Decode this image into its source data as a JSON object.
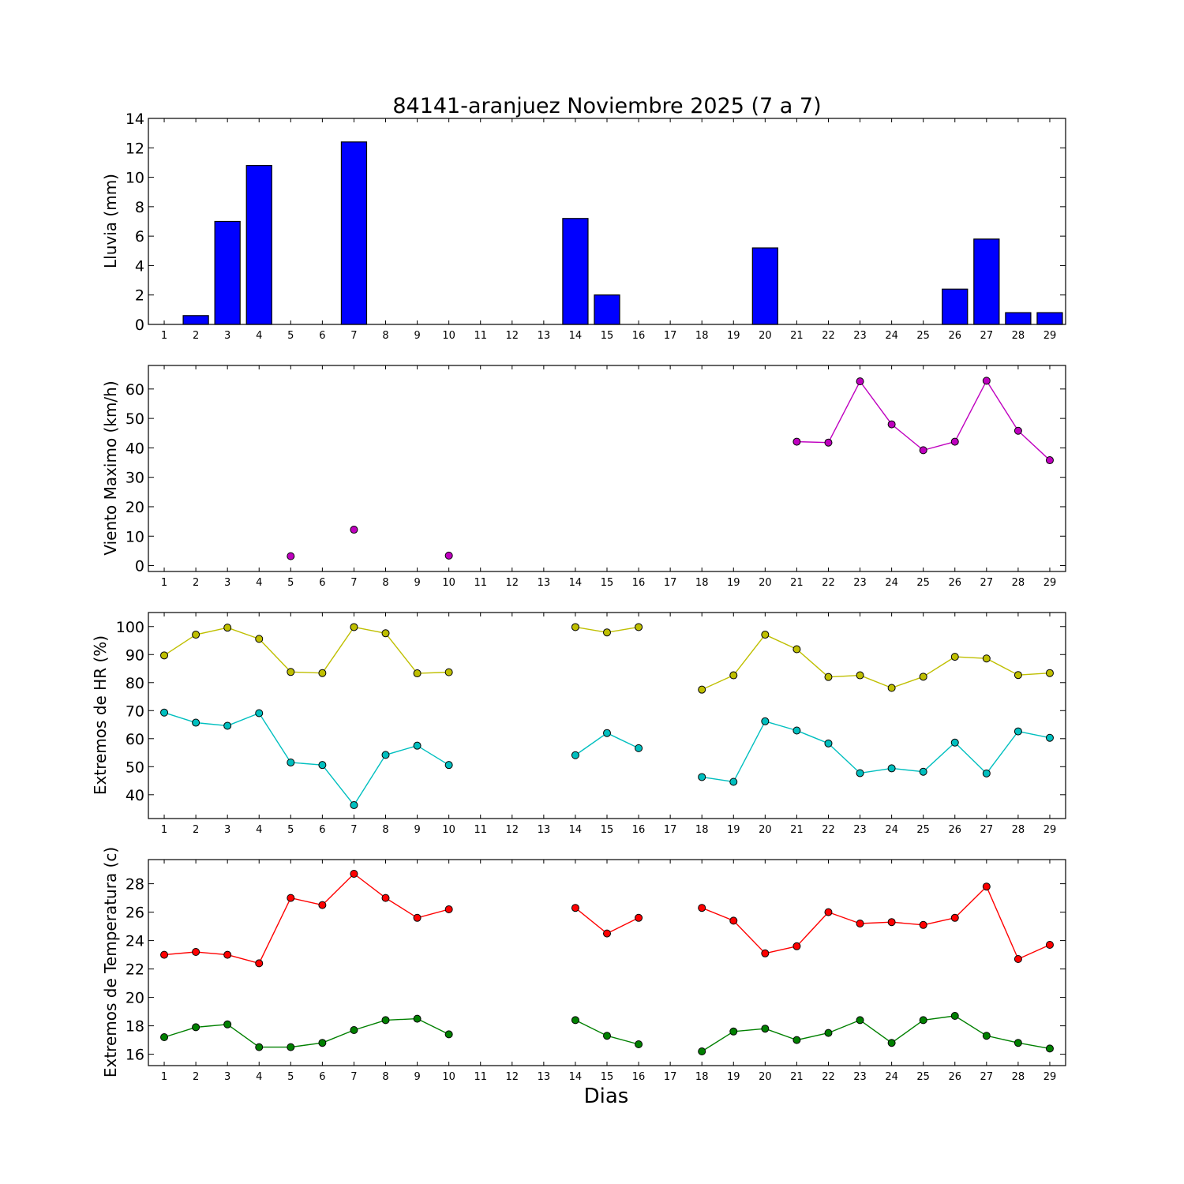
{
  "chart_data": [
    {
      "type": "bar",
      "title": "84141-aranjuez Noviembre 2025  (7 a 7)",
      "xlabel": "",
      "ylabel": "Lluvia (mm)",
      "categories": [
        "1",
        "2",
        "3",
        "4",
        "5",
        "6",
        "7",
        "8",
        "9",
        "10",
        "11",
        "12",
        "13",
        "14",
        "15",
        "16",
        "17",
        "18",
        "19",
        "20",
        "21",
        "22",
        "23",
        "24",
        "25",
        "26",
        "27",
        "28",
        "29"
      ],
      "values": [
        0,
        0.6,
        7.0,
        10.8,
        0,
        0,
        12.4,
        0,
        0,
        0,
        0,
        0,
        0,
        7.2,
        2.0,
        0,
        0,
        0,
        0,
        5.2,
        0,
        0,
        0,
        0,
        0,
        2.4,
        5.8,
        0.8,
        0.8
      ],
      "ylim": [
        0,
        14
      ],
      "yticks": [
        0,
        2,
        4,
        6,
        8,
        10,
        12,
        14
      ],
      "colors": {
        "bar": "#0000ff"
      },
      "grid": false
    },
    {
      "type": "line",
      "title": "",
      "xlabel": "",
      "ylabel": "Viento Maximo (km/h)",
      "categories": [
        "1",
        "2",
        "3",
        "4",
        "5",
        "6",
        "7",
        "8",
        "9",
        "10",
        "11",
        "12",
        "13",
        "14",
        "15",
        "16",
        "17",
        "18",
        "19",
        "20",
        "21",
        "22",
        "23",
        "24",
        "25",
        "26",
        "27",
        "28",
        "29"
      ],
      "series": [
        {
          "values": [
            null,
            null,
            null,
            null,
            3.2,
            null,
            12.2,
            null,
            null,
            3.4,
            null,
            null,
            null,
            null,
            null,
            null,
            null,
            null,
            null,
            null,
            42.1,
            41.8,
            62.6,
            48.0,
            39.2,
            42.1,
            62.8,
            45.8,
            35.8
          ],
          "color": "#bf00bf"
        }
      ],
      "ylim": [
        -2,
        68
      ],
      "yticks": [
        0,
        10,
        20,
        30,
        40,
        50,
        60
      ],
      "grid": false
    },
    {
      "type": "line",
      "title": "",
      "xlabel": "",
      "ylabel": "Extremos de HR (%)",
      "categories": [
        "1",
        "2",
        "3",
        "4",
        "5",
        "6",
        "7",
        "8",
        "9",
        "10",
        "11",
        "12",
        "13",
        "14",
        "15",
        "16",
        "17",
        "18",
        "19",
        "20",
        "21",
        "22",
        "23",
        "24",
        "25",
        "26",
        "27",
        "28",
        "29"
      ],
      "series": [
        {
          "values": [
            89.7,
            97.1,
            99.6,
            95.6,
            83.8,
            83.4,
            99.8,
            97.6,
            83.3,
            83.7,
            null,
            null,
            null,
            99.8,
            97.9,
            99.8,
            null,
            77.5,
            82.6,
            97.1,
            91.9,
            82.0,
            82.6,
            78.1,
            82.1,
            89.2,
            88.6,
            82.7,
            83.4
          ],
          "color": "#bfbf00"
        },
        {
          "values": [
            69.3,
            65.7,
            64.6,
            69.1,
            51.5,
            50.6,
            36.3,
            54.2,
            57.5,
            50.6,
            null,
            null,
            null,
            54.1,
            62.0,
            56.6,
            null,
            46.3,
            44.6,
            66.2,
            62.9,
            58.3,
            47.7,
            49.4,
            48.2,
            58.6,
            47.6,
            62.6,
            60.3
          ],
          "color": "#00bfbf"
        }
      ],
      "ylim": [
        31.5,
        105
      ],
      "yticks": [
        40,
        50,
        60,
        70,
        80,
        90,
        100
      ],
      "grid": false
    },
    {
      "type": "line",
      "title": "",
      "xlabel": "Dias",
      "ylabel": "Extremos de Temperatura (c)",
      "categories": [
        "1",
        "2",
        "3",
        "4",
        "5",
        "6",
        "7",
        "8",
        "9",
        "10",
        "11",
        "12",
        "13",
        "14",
        "15",
        "16",
        "17",
        "18",
        "19",
        "20",
        "21",
        "22",
        "23",
        "24",
        "25",
        "26",
        "27",
        "28",
        "29"
      ],
      "series": [
        {
          "values": [
            23.0,
            23.2,
            23.0,
            22.4,
            27.0,
            26.5,
            28.7,
            27.0,
            25.6,
            26.2,
            null,
            null,
            null,
            26.3,
            24.5,
            25.6,
            null,
            26.3,
            25.4,
            23.1,
            23.6,
            26.0,
            25.2,
            25.3,
            25.1,
            25.6,
            27.8,
            22.7,
            23.7
          ],
          "color": "#ff0000"
        },
        {
          "values": [
            17.2,
            17.9,
            18.1,
            16.5,
            16.5,
            16.8,
            17.7,
            18.4,
            18.5,
            17.4,
            null,
            null,
            null,
            18.4,
            17.3,
            16.7,
            null,
            16.2,
            17.6,
            17.8,
            17.0,
            17.5,
            18.4,
            16.8,
            18.4,
            18.7,
            17.3,
            16.8,
            16.4
          ],
          "color": "#008000"
        }
      ],
      "ylim": [
        15.2,
        29.7
      ],
      "yticks": [
        16,
        18,
        20,
        22,
        24,
        26,
        28
      ],
      "grid": false
    }
  ]
}
